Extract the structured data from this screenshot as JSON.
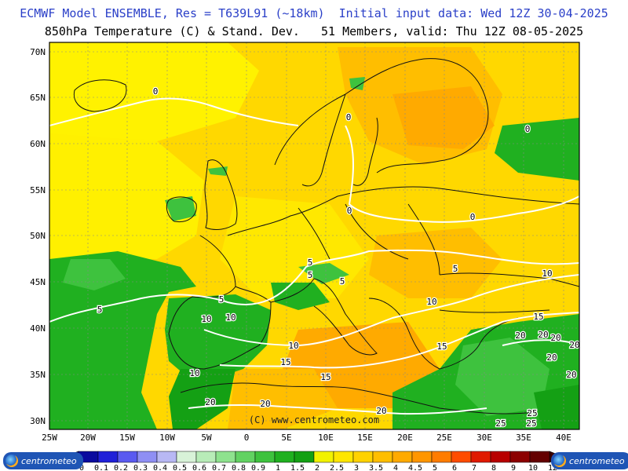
{
  "header": {
    "line1": "ECMWF Model ENSEMBLE, Res = T639L91 (~18km)  Initial input data: Wed 12Z 30-04-2025",
    "line2": "850hPa Temperature (C) & Stand. Dev.   51 Members, valid: Thu 12Z 08-05-2025"
  },
  "map": {
    "lat_labels": [
      "70N",
      "65N",
      "60N",
      "55N",
      "50N",
      "45N",
      "40N",
      "35N",
      "30N"
    ],
    "lon_labels": [
      "25W",
      "20W",
      "15W",
      "10W",
      "5W",
      "0",
      "5E",
      "10E",
      "15E",
      "20E",
      "25E",
      "30E",
      "35E",
      "40E"
    ],
    "copyright": "(C) www.centrometeo.com",
    "contour_labels": [
      "0",
      "0",
      "0",
      "0",
      "0",
      "5",
      "5",
      "5",
      "5",
      "5",
      "5",
      "10",
      "10",
      "10",
      "10",
      "10",
      "10",
      "15",
      "15",
      "15",
      "15",
      "20",
      "20",
      "20",
      "20",
      "20",
      "20",
      "20",
      "20",
      "20",
      "25",
      "25",
      "25"
    ]
  },
  "colorbar": {
    "labels": [
      "0",
      "0.1",
      "0.2",
      "0.3",
      "0.4",
      "0.5",
      "0.6",
      "0.7",
      "0.8",
      "0.9",
      "1",
      "1.5",
      "2",
      "2.5",
      "3",
      "3.5",
      "4",
      "4.5",
      "5",
      "6",
      "7",
      "8",
      "9",
      "10",
      "12"
    ],
    "colors": [
      "#0a0a9e",
      "#2020d8",
      "#5a5af0",
      "#8f8ff4",
      "#b8b8f4",
      "#d8f2d8",
      "#b8ecb8",
      "#8ee28e",
      "#62d262",
      "#3ec23e",
      "#20b020",
      "#14a014",
      "#f2f200",
      "#ffe600",
      "#ffd200",
      "#ffbe00",
      "#ffaa00",
      "#ff9600",
      "#ff7c00",
      "#ff4c00",
      "#e01a00",
      "#b80000",
      "#8c0000",
      "#640000"
    ]
  },
  "logos": {
    "left": "centrometeo",
    "right": "centrometeo"
  }
}
